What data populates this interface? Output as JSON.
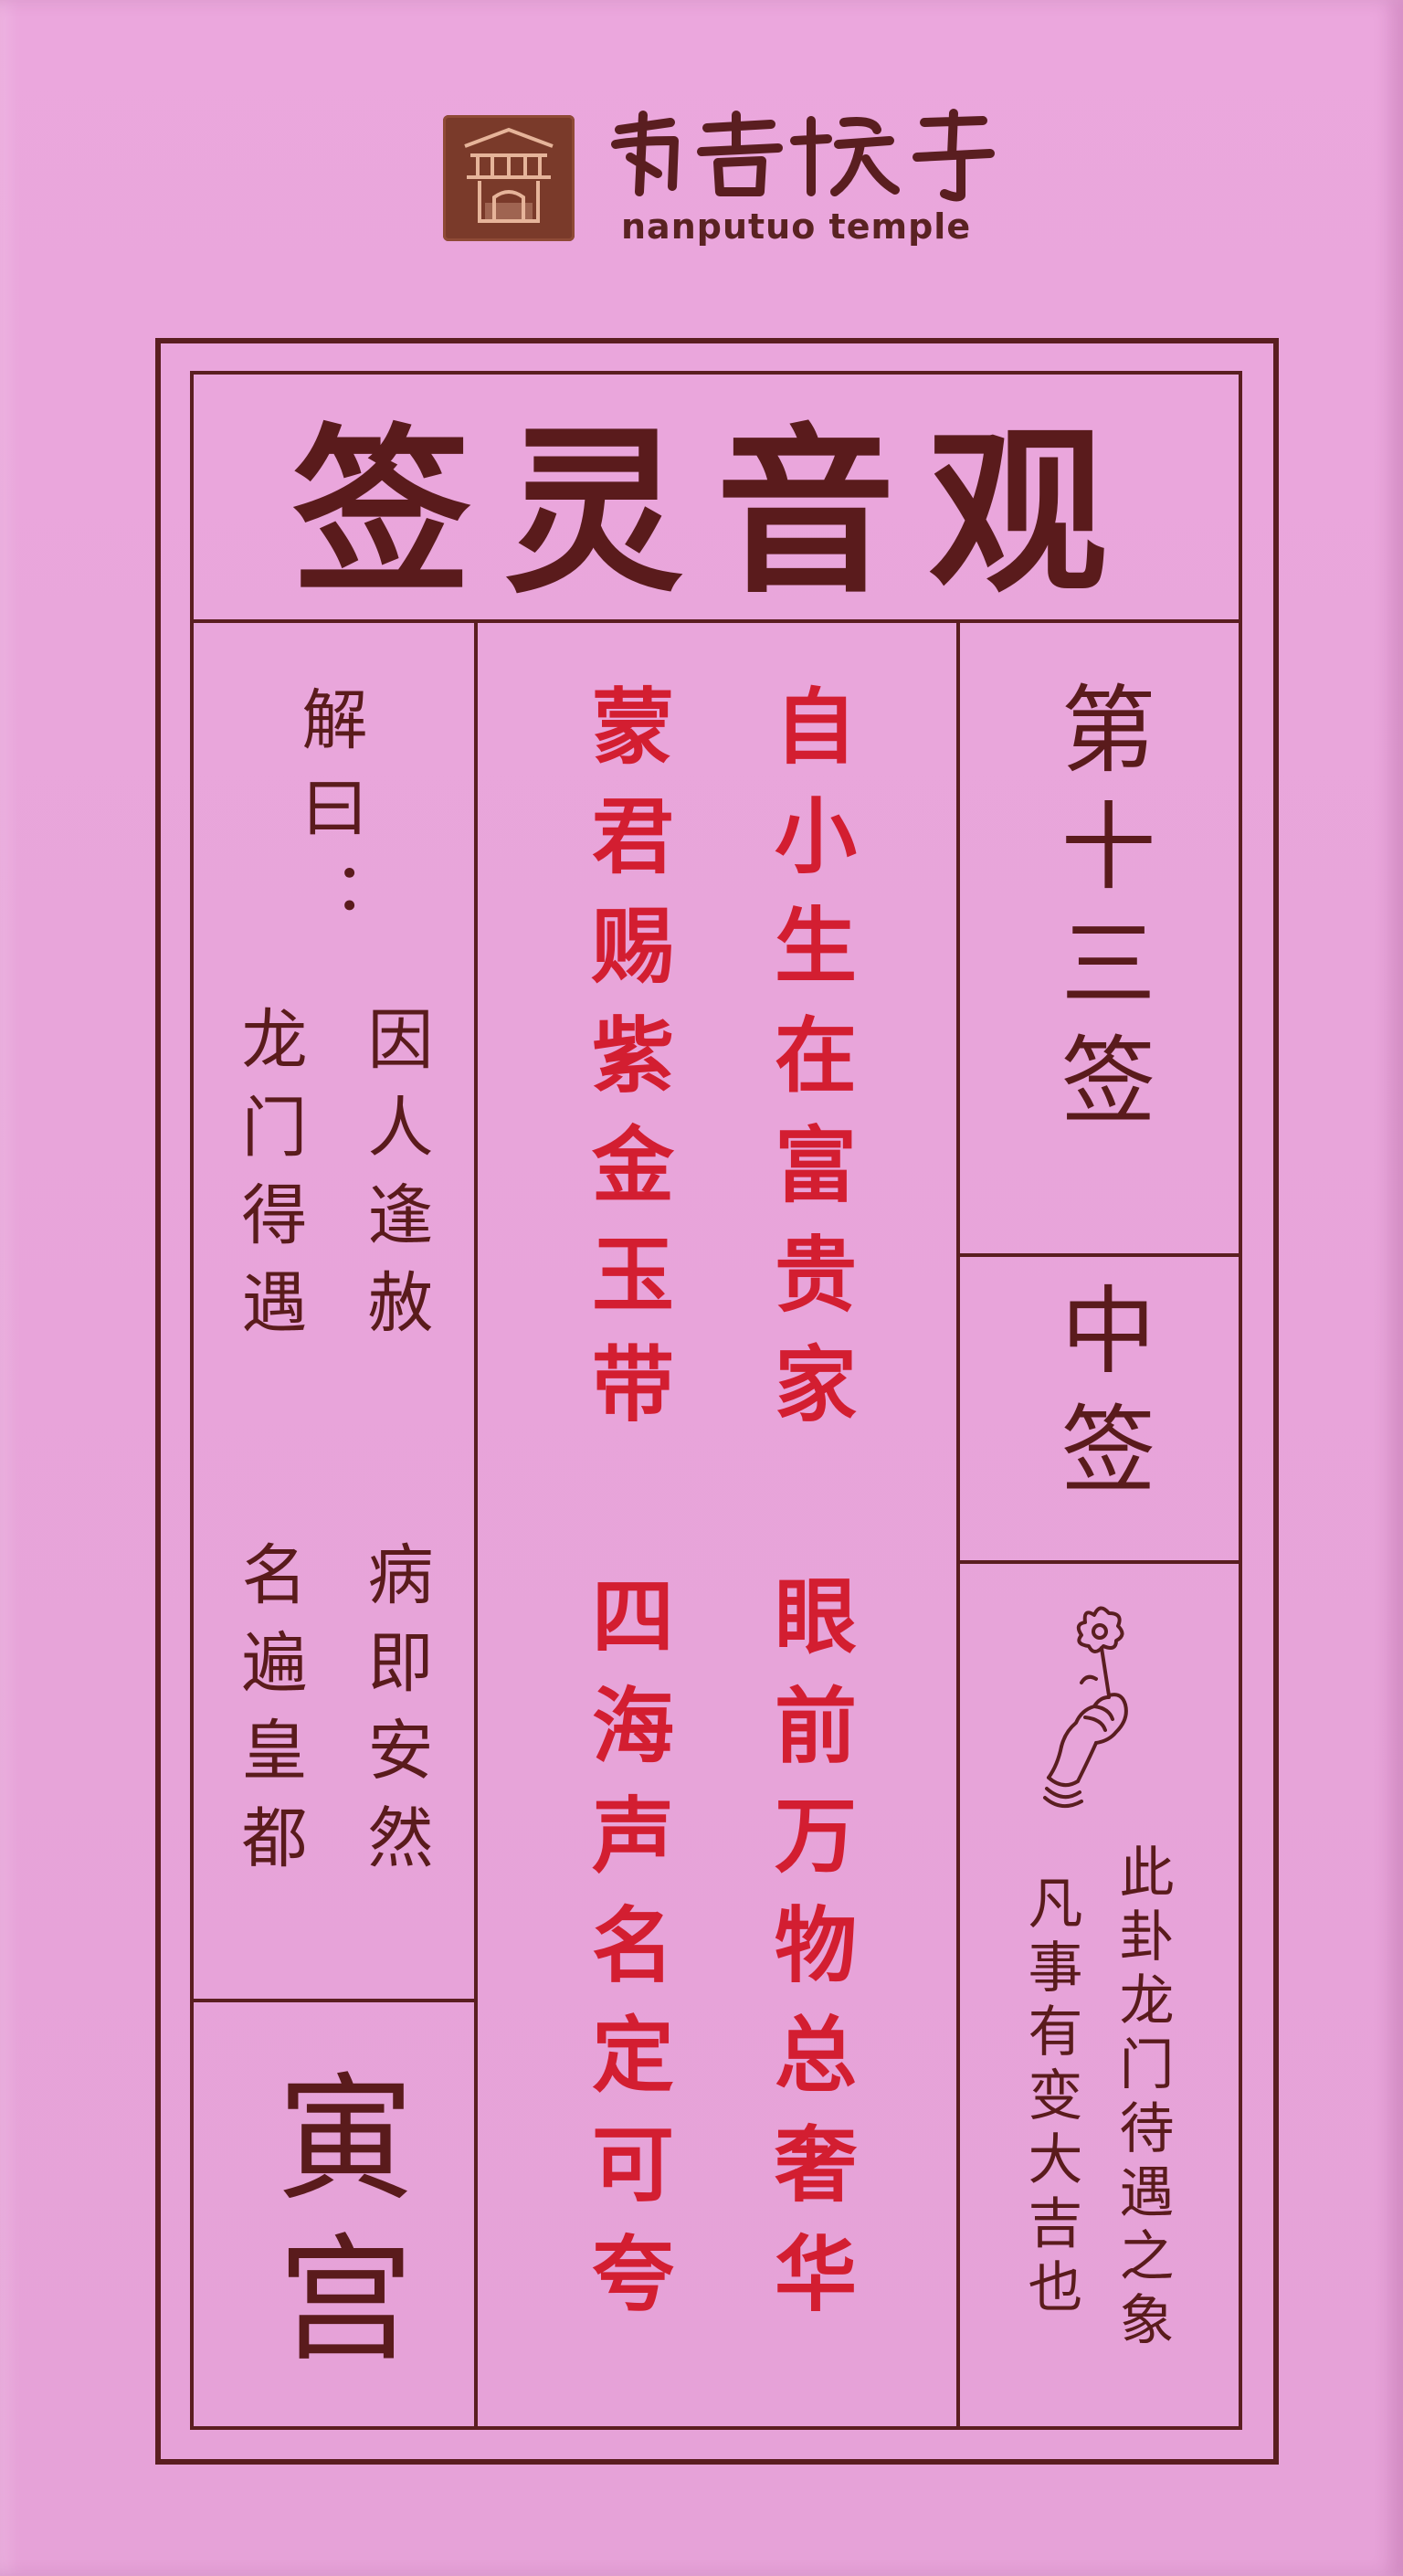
{
  "logo": {
    "seal_icon": "temple-gate-seal-icon",
    "name_script": "南普陀寺",
    "name_latin": "nanputuo temple"
  },
  "title": "签灵音观",
  "lot": {
    "number": "第十三签",
    "grade": "中签"
  },
  "poem": {
    "line1": "自小生在富贵家",
    "line2": "眼前万物总奢华",
    "line3": "蒙君赐紫金玉带",
    "line4": "四海声名定可夸"
  },
  "explanation": {
    "header": "解曰：",
    "col1a": "因人逢赦",
    "col1b": "病即安然",
    "col2a": "龙门得遇",
    "col2b": "名遍皇都"
  },
  "palace": "寅宫",
  "note": {
    "col1": "此卦龙门待遇之象",
    "col2": "凡事有变大吉也"
  },
  "icon": "lotus-hand-icon",
  "colors": {
    "paper": "#e8a5da",
    "ink": "#5a1b1c",
    "poem_red": "#d31e31",
    "seal": "#7a3a2a"
  }
}
